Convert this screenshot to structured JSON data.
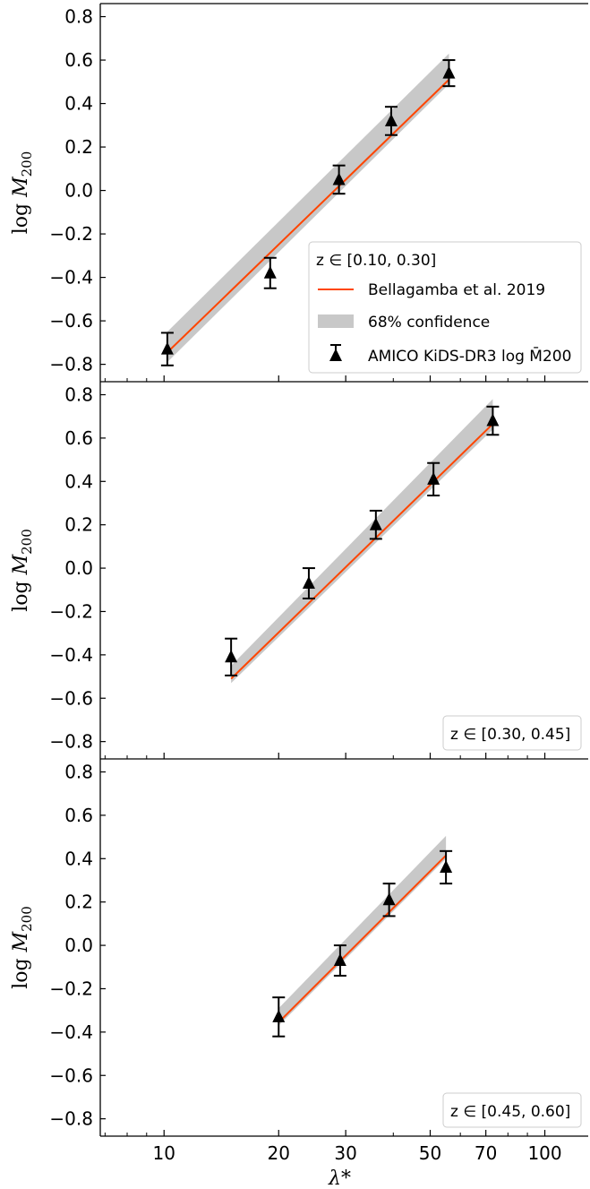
{
  "chart_data": [
    {
      "type": "scatter",
      "panel_label": "z ∈ [0.10, 0.30]",
      "ylabel": "log M200",
      "xlabel": "",
      "xscale": "log",
      "xlim": [
        6.8,
        130
      ],
      "ylim": [
        -0.88,
        0.86
      ],
      "xticks": [
        "10",
        "20",
        "30",
        "50",
        "70",
        "100"
      ],
      "yticks": [
        "0.8",
        "0.6",
        "0.4",
        "0.2",
        "0.0",
        "−0.2",
        "−0.4",
        "−0.6",
        "−0.8"
      ],
      "legend": {
        "placement": "lower-right",
        "entries": [
          "Bellagamba et al. 2019",
          "68% confidence",
          "AMICO KiDS-DR3 log M̄200"
        ]
      },
      "series": [
        {
          "name": "AMICO KiDS-DR3 log M̄200",
          "x": [
            10.2,
            19.0,
            28.8,
            39.5,
            56.0
          ],
          "y": [
            -0.73,
            -0.38,
            0.05,
            0.32,
            0.54
          ],
          "yerr": [
            0.075,
            0.07,
            0.065,
            0.065,
            0.06
          ]
        },
        {
          "name": "Bellagamba et al. 2019",
          "x": [
            10.2,
            56.0
          ],
          "y": [
            -0.745,
            0.51
          ]
        },
        {
          "name": "68% confidence",
          "x": [
            10.2,
            56.0
          ],
          "ylow": [
            -0.79,
            0.49
          ],
          "yhigh": [
            -0.65,
            0.63
          ]
        }
      ]
    },
    {
      "type": "scatter",
      "panel_label": "z ∈ [0.30, 0.45]",
      "ylabel": "log M200",
      "xlabel": "",
      "xscale": "log",
      "xlim": [
        6.8,
        130
      ],
      "ylim": [
        -0.88,
        0.86
      ],
      "xticks": [
        "10",
        "20",
        "30",
        "50",
        "70",
        "100"
      ],
      "yticks": [
        "0.8",
        "0.6",
        "0.4",
        "0.2",
        "0.0",
        "−0.2",
        "−0.4",
        "−0.6",
        "−0.8"
      ],
      "legend": {
        "placement": "lower-right",
        "entries": []
      },
      "series": [
        {
          "name": "AMICO KiDS-DR3 log M̄200",
          "x": [
            15.0,
            24.0,
            36.0,
            51.0,
            73.0
          ],
          "y": [
            -0.41,
            -0.07,
            0.2,
            0.41,
            0.68
          ],
          "yerr": [
            0.085,
            0.07,
            0.065,
            0.075,
            0.065
          ]
        },
        {
          "name": "Bellagamba et al. 2019",
          "x": [
            15.0,
            73.0
          ],
          "y": [
            -0.51,
            0.665
          ]
        },
        {
          "name": "68% confidence",
          "x": [
            15.0,
            73.0
          ],
          "ylow": [
            -0.53,
            0.64
          ],
          "yhigh": [
            -0.45,
            0.78
          ]
        }
      ]
    },
    {
      "type": "scatter",
      "panel_label": "z ∈ [0.45, 0.60]",
      "ylabel": "log M200",
      "xlabel": "λ*",
      "xscale": "log",
      "xlim": [
        6.8,
        130
      ],
      "ylim": [
        -0.88,
        0.86
      ],
      "xticks": [
        "10",
        "20",
        "30",
        "50",
        "70",
        "100"
      ],
      "yticks": [
        "0.8",
        "0.6",
        "0.4",
        "0.2",
        "0.0",
        "−0.2",
        "−0.4",
        "−0.6",
        "−0.8"
      ],
      "legend": {
        "placement": "lower-right",
        "entries": []
      },
      "series": [
        {
          "name": "AMICO KiDS-DR3 log M̄200",
          "x": [
            20.0,
            29.0,
            39.0,
            55.0
          ],
          "y": [
            -0.33,
            -0.07,
            0.21,
            0.36
          ],
          "yerr": [
            0.09,
            0.07,
            0.075,
            0.075
          ]
        },
        {
          "name": "Bellagamba et al. 2019",
          "x": [
            20.0,
            55.0
          ],
          "y": [
            -0.355,
            0.415
          ]
        },
        {
          "name": "68% confidence",
          "x": [
            20.0,
            55.0
          ],
          "ylow": [
            -0.37,
            0.4
          ],
          "yhigh": [
            -0.29,
            0.505
          ]
        }
      ]
    }
  ],
  "colors": {
    "model_line": "#ff4500",
    "confidence_band": "#c8c8c8",
    "points": "#000000"
  }
}
